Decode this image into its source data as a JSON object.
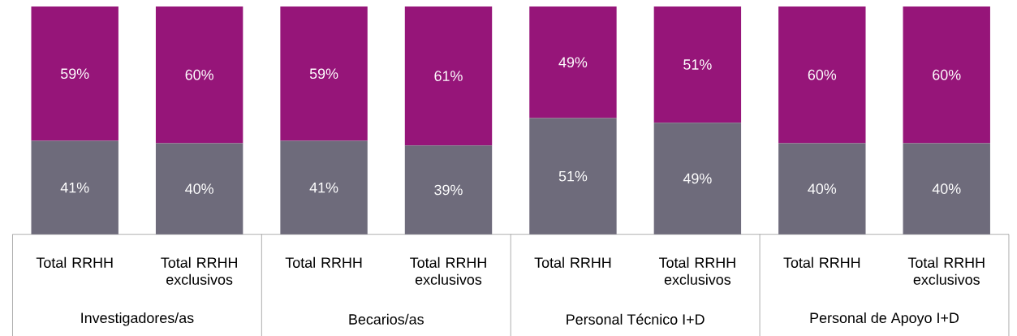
{
  "chart_data": {
    "type": "bar",
    "stacked": true,
    "categories": [
      "Total RRHH",
      "Total RRHH exclusivos",
      "Total RRHH",
      "Total RRHH exclusivos",
      "Total RRHH",
      "Total RRHH exclusivos",
      "Total RRHH",
      "Total RRHH exclusivos"
    ],
    "series": [
      {
        "color": "#6e6b7b",
        "values": [
          41,
          40,
          41,
          39,
          51,
          49,
          40,
          40
        ],
        "value_labels": [
          "41%",
          "40%",
          "41%",
          "39%",
          "51%",
          "49%",
          "40%",
          "40%"
        ]
      },
      {
        "color": "#961579",
        "values": [
          59,
          60,
          59,
          61,
          49,
          51,
          60,
          60
        ],
        "value_labels": [
          "59%",
          "60%",
          "59%",
          "61%",
          "49%",
          "51%",
          "60%",
          "60%"
        ]
      }
    ],
    "annotations": [
      "Investigadores/as",
      "Becarios/as",
      "Personal Técnico I+D",
      "Personal de Apoyo I+D"
    ]
  }
}
